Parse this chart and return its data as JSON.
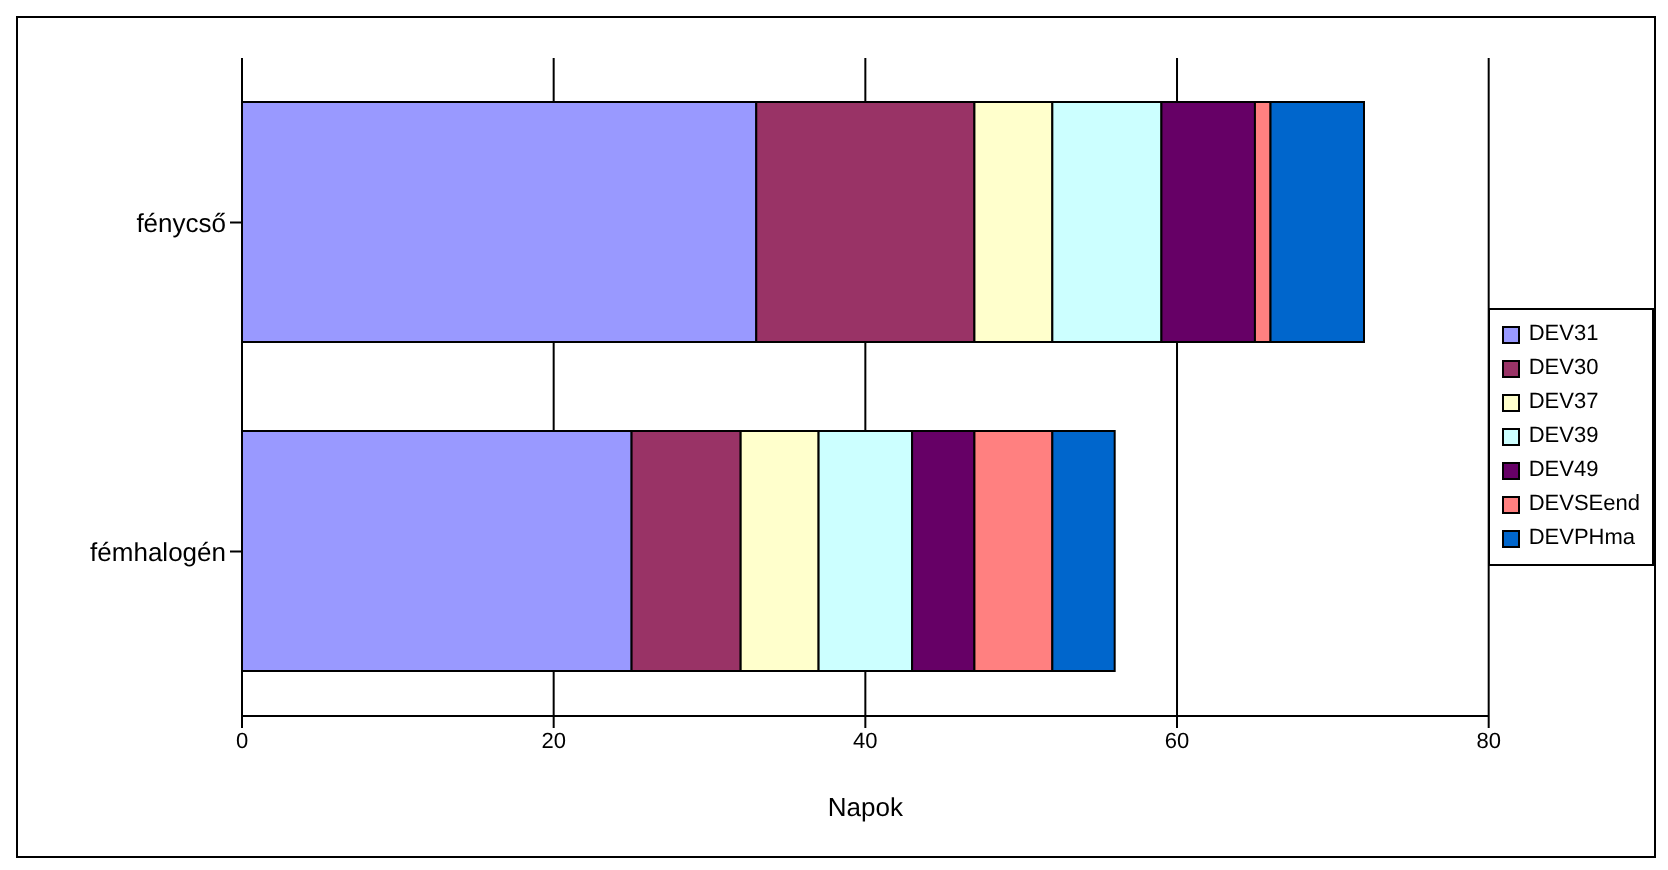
{
  "chart_data": {
    "type": "bar",
    "orientation": "horizontal",
    "stacked": true,
    "xlabel": "Napok",
    "categories": [
      "fénycső",
      "fémhalogén"
    ],
    "series": [
      {
        "name": "DEV31",
        "color": "#9999ff",
        "values": [
          33,
          25
        ]
      },
      {
        "name": "DEV30",
        "color": "#993366",
        "values": [
          14,
          7
        ]
      },
      {
        "name": "DEV37",
        "color": "#ffffcc",
        "values": [
          5,
          5
        ]
      },
      {
        "name": "DEV39",
        "color": "#ccffff",
        "values": [
          7,
          6
        ]
      },
      {
        "name": "DEV49",
        "color": "#660066",
        "values": [
          6,
          4
        ]
      },
      {
        "name": "DEVSEend",
        "color": "#ff8080",
        "values": [
          1,
          5
        ]
      },
      {
        "name": "DEVPHma",
        "color": "#0066cc",
        "values": [
          6,
          4
        ]
      }
    ],
    "xlim": [
      0,
      80
    ],
    "xticks": [
      0,
      20,
      40,
      60,
      80
    ],
    "grid": "x",
    "legend": "right"
  }
}
